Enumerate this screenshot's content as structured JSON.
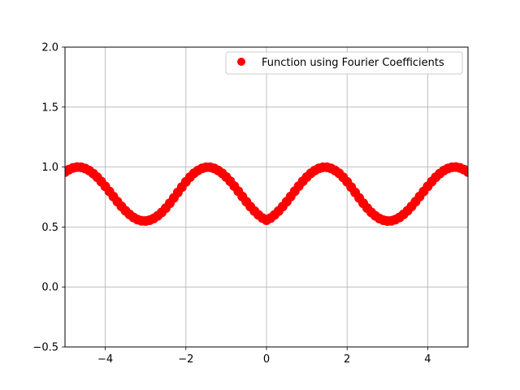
{
  "chart_data": {
    "type": "scatter",
    "title": "",
    "xlabel": "",
    "ylabel": "",
    "xlim": [
      -5,
      5
    ],
    "ylim": [
      -0.5,
      2.0
    ],
    "xticks": [
      -4,
      -2,
      0,
      2,
      4
    ],
    "xtick_labels": [
      "−4",
      "−2",
      "0",
      "2",
      "4"
    ],
    "yticks": [
      -0.5,
      0.0,
      0.5,
      1.0,
      1.5,
      2.0
    ],
    "ytick_labels": [
      "−0.5",
      "0.0",
      "0.5",
      "1.0",
      "1.5",
      "2.0"
    ],
    "grid": true,
    "legend_position": "top-right",
    "series": [
      {
        "name": "Function using Fourier Coefficients",
        "color": "#ff0000",
        "marker": "circle",
        "x": [
          -5.0,
          -4.9,
          -4.8,
          -4.7,
          -4.6,
          -4.5,
          -4.4,
          -4.3,
          -4.2,
          -4.1,
          -4.0,
          -3.9,
          -3.8,
          -3.7,
          -3.6,
          -3.5,
          -3.4,
          -3.3,
          -3.2,
          -3.1,
          -3.0,
          -2.9,
          -2.8,
          -2.7,
          -2.6,
          -2.5,
          -2.4,
          -2.3,
          -2.2,
          -2.1,
          -2.0,
          -1.9,
          -1.8,
          -1.7,
          -1.6,
          -1.5,
          -1.4,
          -1.3,
          -1.2,
          -1.1,
          -1.0,
          -0.9,
          -0.8,
          -0.7,
          -0.6,
          -0.5,
          -0.4,
          -0.3,
          -0.2,
          -0.1,
          0.0,
          0.1,
          0.2,
          0.3,
          0.4,
          0.5,
          0.6,
          0.7,
          0.8,
          0.9,
          1.0,
          1.1,
          1.2,
          1.3,
          1.4,
          1.5,
          1.6,
          1.7,
          1.8,
          1.9,
          2.0,
          2.1,
          2.2,
          2.3,
          2.4,
          2.5,
          2.6,
          2.7,
          2.8,
          2.9,
          3.0,
          3.1,
          3.2,
          3.3,
          3.4,
          3.5,
          3.6,
          3.7,
          3.8,
          3.9,
          4.0,
          4.1,
          4.2,
          4.3,
          4.4,
          4.5,
          4.6,
          4.7,
          4.8,
          4.9,
          5.0
        ],
        "y": [
          0.958,
          0.979,
          0.993,
          1.0,
          0.998,
          0.988,
          0.971,
          0.946,
          0.915,
          0.879,
          0.839,
          0.797,
          0.754,
          0.712,
          0.672,
          0.636,
          0.605,
          0.58,
          0.562,
          0.552,
          0.55,
          0.557,
          0.571,
          0.593,
          0.622,
          0.658,
          0.698,
          0.742,
          0.788,
          0.833,
          0.877,
          0.915,
          0.948,
          0.972,
          0.989,
          0.998,
          0.998,
          0.989,
          0.972,
          0.948,
          0.917,
          0.881,
          0.841,
          0.798,
          0.754,
          0.711,
          0.67,
          0.633,
          0.601,
          0.575,
          0.557,
          0.575,
          0.601,
          0.633,
          0.67,
          0.711,
          0.754,
          0.798,
          0.841,
          0.881,
          0.917,
          0.948,
          0.972,
          0.989,
          0.998,
          0.998,
          0.989,
          0.972,
          0.948,
          0.915,
          0.877,
          0.833,
          0.788,
          0.742,
          0.698,
          0.658,
          0.622,
          0.593,
          0.571,
          0.557,
          0.55,
          0.552,
          0.562,
          0.58,
          0.605,
          0.636,
          0.672,
          0.712,
          0.754,
          0.797,
          0.839,
          0.879,
          0.915,
          0.946,
          0.971,
          0.988,
          0.998,
          1.0,
          0.993,
          0.979,
          0.958
        ]
      }
    ]
  }
}
